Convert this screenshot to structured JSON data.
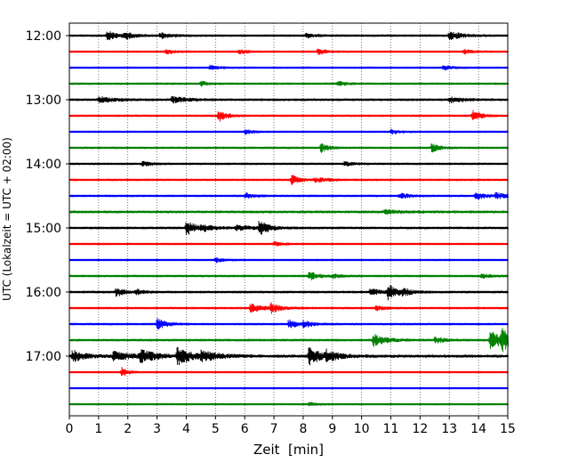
{
  "chart_data": {
    "type": "helicorder",
    "xlabel": "Zeit  [min]",
    "ylabel": "UTC (Lokalzeit = UTC + 02:00)",
    "xlim": [
      0,
      15
    ],
    "x_ticks": [
      0,
      1,
      2,
      3,
      4,
      5,
      6,
      7,
      8,
      9,
      10,
      11,
      12,
      13,
      14,
      15
    ],
    "x_tick_labels": [
      "0",
      "1",
      "2",
      "3",
      "4",
      "5",
      "6",
      "7",
      "8",
      "9",
      "10",
      "11",
      "12",
      "13",
      "14",
      "15"
    ],
    "y_tick_labels": [
      "12:00",
      "13:00",
      "14:00",
      "15:00",
      "16:00",
      "17:00"
    ],
    "minutes_per_line": 15,
    "grid": "vertical dotted",
    "colors": [
      "#000000",
      "#ff0000",
      "#0000ff",
      "#008000"
    ],
    "traces": [
      {
        "start": "12:00",
        "noise": 0.8,
        "events": [
          [
            1.3,
            3,
            0.35
          ],
          [
            1.9,
            2,
            0.3
          ],
          [
            3.1,
            2,
            0.4
          ],
          [
            8.1,
            1.5,
            0.3
          ],
          [
            13.0,
            3,
            0.4
          ]
        ]
      },
      {
        "start": "12:15",
        "noise": 0.7,
        "events": [
          [
            3.3,
            1.5,
            0.3
          ],
          [
            5.8,
            1.5,
            0.3
          ],
          [
            8.5,
            2,
            0.3
          ],
          [
            13.5,
            1.5,
            0.3
          ]
        ]
      },
      {
        "start": "12:30",
        "noise": 0.7,
        "events": [
          [
            4.8,
            1.5,
            0.3
          ],
          [
            12.8,
            1.5,
            0.3
          ]
        ]
      },
      {
        "start": "12:45",
        "noise": 0.8,
        "events": [
          [
            4.5,
            1.5,
            0.3
          ],
          [
            9.2,
            1.5,
            0.3
          ]
        ]
      },
      {
        "start": "13:00",
        "noise": 0.9,
        "events": [
          [
            1.0,
            2,
            0.5
          ],
          [
            3.5,
            2,
            0.5
          ],
          [
            13.0,
            2,
            0.4
          ]
        ]
      },
      {
        "start": "13:15",
        "noise": 0.8,
        "events": [
          [
            5.1,
            4,
            0.25
          ],
          [
            13.8,
            4,
            0.25
          ]
        ]
      },
      {
        "start": "13:30",
        "noise": 0.7,
        "events": [
          [
            6.0,
            1.5,
            0.3
          ],
          [
            11.0,
            1.5,
            0.3
          ]
        ]
      },
      {
        "start": "13:45",
        "noise": 0.8,
        "events": [
          [
            8.6,
            3,
            0.25
          ],
          [
            12.4,
            3,
            0.25
          ]
        ]
      },
      {
        "start": "14:00",
        "noise": 0.8,
        "events": [
          [
            2.5,
            1.5,
            0.3
          ],
          [
            9.4,
            1.5,
            0.3
          ]
        ]
      },
      {
        "start": "14:15",
        "noise": 0.8,
        "events": [
          [
            7.6,
            3.5,
            0.25
          ],
          [
            8.4,
            1.5,
            0.4
          ]
        ]
      },
      {
        "start": "14:30",
        "noise": 0.8,
        "events": [
          [
            6.0,
            2,
            0.3
          ],
          [
            11.3,
            2,
            0.3
          ],
          [
            13.9,
            3,
            0.3
          ],
          [
            14.6,
            2,
            0.3
          ]
        ]
      },
      {
        "start": "14:45",
        "noise": 1.0,
        "events": [
          [
            10.8,
            1.5,
            0.5
          ]
        ]
      },
      {
        "start": "15:00",
        "noise": 0.9,
        "events": [
          [
            4.0,
            5,
            0.3
          ],
          [
            4.5,
            2,
            0.4
          ],
          [
            6.5,
            5,
            0.3
          ],
          [
            5.7,
            1.5,
            0.6
          ]
        ]
      },
      {
        "start": "15:15",
        "noise": 0.7,
        "events": [
          [
            7.0,
            1.5,
            0.3
          ]
        ]
      },
      {
        "start": "15:30",
        "noise": 0.7,
        "events": [
          [
            5.0,
            1.5,
            0.3
          ]
        ]
      },
      {
        "start": "15:45",
        "noise": 0.8,
        "events": [
          [
            8.2,
            3,
            0.3
          ],
          [
            9.0,
            1.5,
            0.3
          ],
          [
            14.1,
            1.5,
            0.3
          ]
        ]
      },
      {
        "start": "16:00",
        "noise": 0.9,
        "events": [
          [
            1.6,
            3,
            0.25
          ],
          [
            2.3,
            2,
            0.2
          ],
          [
            10.3,
            2,
            0.4
          ],
          [
            10.9,
            5,
            0.3
          ],
          [
            11.4,
            2,
            0.3
          ]
        ]
      },
      {
        "start": "16:15",
        "noise": 0.8,
        "events": [
          [
            6.2,
            3,
            0.4
          ],
          [
            6.9,
            3,
            0.3
          ],
          [
            10.5,
            1.5,
            0.3
          ]
        ]
      },
      {
        "start": "16:30",
        "noise": 0.8,
        "events": [
          [
            3.0,
            4,
            0.3
          ],
          [
            7.5,
            3,
            0.3
          ],
          [
            8.0,
            2,
            0.3
          ]
        ]
      },
      {
        "start": "16:45",
        "noise": 0.9,
        "events": [
          [
            10.4,
            4,
            0.4
          ],
          [
            12.5,
            2,
            0.3
          ],
          [
            14.4,
            6,
            0.5
          ],
          [
            14.8,
            6,
            0.3
          ]
        ]
      },
      {
        "start": "17:00",
        "noise": 1.1,
        "events": [
          [
            0.1,
            4,
            0.4
          ],
          [
            1.5,
            3,
            0.6
          ],
          [
            2.4,
            4,
            0.5
          ],
          [
            3.7,
            6,
            0.4
          ],
          [
            4.5,
            3,
            0.6
          ],
          [
            8.2,
            6,
            0.4
          ],
          [
            8.8,
            3,
            0.4
          ]
        ]
      },
      {
        "start": "17:15",
        "noise": 0.7,
        "events": [
          [
            1.8,
            4,
            0.15
          ]
        ]
      },
      {
        "start": "17:30",
        "noise": 0.6,
        "events": []
      },
      {
        "start": "17:45",
        "noise": 0.7,
        "events": [
          [
            8.2,
            1.2,
            0.3
          ]
        ]
      }
    ]
  }
}
